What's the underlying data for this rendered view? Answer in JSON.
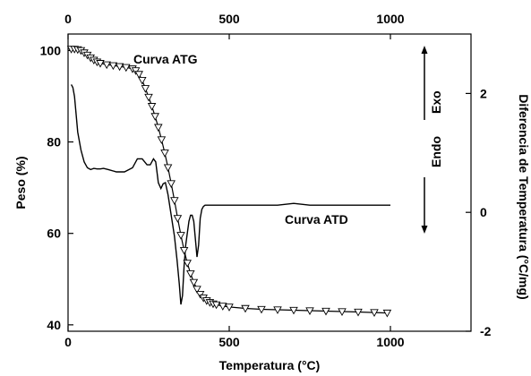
{
  "chart_data": {
    "type": "line",
    "xlabel": "Temperatura (°C)",
    "ylabel_left": "Peso (%)",
    "ylabel_right": "Diferencia de Temperatura (°C/mg)",
    "xlim": [
      0,
      1250
    ],
    "xticks": [
      0,
      500,
      1000
    ],
    "ylim_left": [
      38.6,
      103.6
    ],
    "yticks_left": [
      40,
      60,
      80,
      100
    ],
    "ylim_right": [
      -2.0,
      3.0
    ],
    "yticks_right": [
      -2,
      0,
      2
    ],
    "grid": false,
    "series": [
      {
        "name": "Curva ATG",
        "axis": "left",
        "marker": "triangle-down",
        "x": [
          10,
          20,
          30,
          40,
          50,
          60,
          70,
          80,
          90,
          100,
          120,
          140,
          160,
          180,
          200,
          210,
          220,
          230,
          240,
          250,
          260,
          270,
          280,
          290,
          300,
          310,
          320,
          330,
          340,
          350,
          360,
          370,
          380,
          390,
          400,
          410,
          420,
          430,
          440,
          450,
          460,
          480,
          500,
          550,
          600,
          650,
          700,
          750,
          800,
          850,
          900,
          950,
          990
        ],
        "values": [
          100.3,
          100.3,
          100.2,
          100.0,
          99.5,
          99.0,
          98.4,
          97.9,
          97.5,
          97.2,
          96.9,
          96.7,
          96.5,
          96.3,
          96.0,
          95.6,
          94.8,
          93.5,
          91.7,
          89.8,
          87.8,
          85.6,
          83.2,
          80.5,
          77.6,
          74.4,
          70.9,
          67.2,
          63.3,
          59.6,
          56.3,
          53.5,
          51.2,
          49.3,
          47.8,
          46.7,
          45.9,
          45.3,
          44.9,
          44.6,
          44.4,
          44.1,
          43.9,
          43.6,
          43.4,
          43.3,
          43.2,
          43.1,
          43.0,
          42.9,
          42.8,
          42.7,
          42.6
        ]
      },
      {
        "name": "Curva ATD",
        "axis": "right",
        "marker": "none",
        "x": [
          10,
          15,
          20,
          25,
          30,
          40,
          50,
          60,
          70,
          80,
          90,
          100,
          110,
          125,
          150,
          175,
          200,
          215,
          230,
          245,
          255,
          265,
          272,
          280,
          288,
          295,
          302,
          310,
          320,
          330,
          338,
          345,
          350,
          355,
          360,
          365,
          370,
          375,
          380,
          385,
          390,
          395,
          400,
          405,
          410,
          415,
          420,
          425,
          430,
          435,
          440,
          450,
          470,
          500,
          550,
          600,
          650,
          700,
          750,
          800,
          900,
          1000
        ],
        "values": [
          2.15,
          2.1,
          1.95,
          1.65,
          1.35,
          1.05,
          0.85,
          0.75,
          0.72,
          0.74,
          0.73,
          0.73,
          0.74,
          0.72,
          0.68,
          0.68,
          0.75,
          0.9,
          0.9,
          0.8,
          0.8,
          0.9,
          0.85,
          0.5,
          0.4,
          0.48,
          0.5,
          0.3,
          -0.05,
          -0.4,
          -0.8,
          -1.2,
          -1.55,
          -1.4,
          -0.9,
          -0.55,
          -0.35,
          -0.15,
          -0.05,
          -0.05,
          -0.15,
          -0.45,
          -0.75,
          -0.55,
          -0.1,
          0.05,
          0.1,
          0.12,
          0.12,
          0.12,
          0.12,
          0.12,
          0.12,
          0.12,
          0.12,
          0.12,
          0.12,
          0.15,
          0.12,
          0.12,
          0.12,
          0.12
        ]
      }
    ],
    "annotations": {
      "exo": "Exo",
      "endo": "Endo"
    }
  }
}
